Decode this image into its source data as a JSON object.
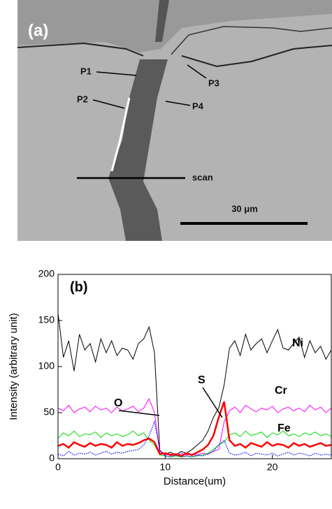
{
  "micrograph": {
    "panel_label": "(a)",
    "labels": [
      "P1",
      "P2",
      "P3",
      "P4"
    ],
    "scan_label": "scan",
    "scale_bar": "30 μm"
  },
  "chart_data": {
    "type": "line",
    "panel_label": "(b)",
    "x_label": "Distance(um)",
    "y_label": "Intensity (arbitrary unit)",
    "xlim": [
      0,
      25.5
    ],
    "ylim": [
      0,
      200
    ],
    "xticks": [
      0,
      10,
      20
    ],
    "yticks": [
      0,
      50,
      100,
      150,
      200
    ],
    "x": [
      0,
      0.5,
      1,
      1.5,
      2,
      2.5,
      3,
      3.5,
      4,
      4.5,
      5,
      5.5,
      6,
      6.5,
      7,
      7.5,
      8,
      8.5,
      9,
      9.5,
      10,
      10.5,
      11,
      11.5,
      12,
      12.5,
      13,
      13.5,
      14,
      14.5,
      15,
      15.5,
      16,
      16.5,
      17,
      17.5,
      18,
      18.5,
      19,
      19.5,
      20,
      20.5,
      21,
      21.5,
      22,
      22.5,
      23,
      23.5,
      24,
      24.5,
      25,
      25.5
    ],
    "series": [
      {
        "name": "Ni",
        "color": "#000000",
        "width": 1,
        "style": "solid",
        "values": [
          158,
          110,
          128,
          95,
          135,
          118,
          125,
          105,
          130,
          115,
          128,
          112,
          120,
          118,
          108,
          125,
          130,
          143,
          115,
          8,
          5,
          7,
          4,
          8,
          6,
          10,
          15,
          20,
          30,
          45,
          55,
          80,
          120,
          128,
          112,
          135,
          118,
          125,
          130,
          115,
          128,
          140,
          120,
          118,
          125,
          132,
          110,
          128,
          115,
          122,
          108,
          118
        ]
      },
      {
        "name": "Cr",
        "color": "#ff00ff",
        "width": 1,
        "style": "solid",
        "values": [
          55,
          52,
          58,
          50,
          54,
          56,
          51,
          57,
          53,
          55,
          50,
          56,
          52,
          54,
          57,
          51,
          55,
          65,
          50,
          6,
          4,
          5,
          3,
          6,
          4,
          5,
          4,
          6,
          5,
          8,
          10,
          40,
          52,
          56,
          50,
          58,
          54,
          51,
          55,
          53,
          57,
          50,
          54,
          56,
          52,
          55,
          51,
          58,
          53,
          56,
          50,
          55
        ]
      },
      {
        "name": "Fe",
        "color": "#00dd00",
        "width": 1,
        "style": "solid",
        "values": [
          22,
          28,
          25,
          30,
          24,
          27,
          26,
          29,
          23,
          28,
          25,
          27,
          24,
          26,
          30,
          25,
          28,
          20,
          15,
          4,
          3,
          2,
          3,
          2,
          3,
          2,
          3,
          4,
          6,
          10,
          15,
          18,
          26,
          28,
          24,
          30,
          25,
          27,
          29,
          23,
          28,
          26,
          30,
          25,
          27,
          24,
          28,
          26,
          29,
          25,
          27,
          24
        ]
      },
      {
        "name": "O",
        "color": "#0000ff",
        "width": 1.2,
        "style": "dotted",
        "values": [
          5,
          3,
          8,
          4,
          6,
          5,
          7,
          4,
          6,
          8,
          5,
          7,
          6,
          8,
          9,
          10,
          15,
          25,
          40,
          10,
          3,
          2,
          4,
          2,
          3,
          2,
          4,
          3,
          5,
          8,
          15,
          20,
          6,
          4,
          5,
          7,
          3,
          6,
          5,
          4,
          6,
          3,
          5,
          7,
          4,
          6,
          5,
          3,
          6,
          4,
          5,
          4
        ]
      },
      {
        "name": "S",
        "color": "#ff0000",
        "width": 2.5,
        "style": "solid",
        "values": [
          14,
          16,
          12,
          18,
          15,
          13,
          17,
          14,
          16,
          15,
          12,
          18,
          14,
          16,
          15,
          17,
          20,
          22,
          18,
          5,
          6,
          4,
          5,
          3,
          6,
          4,
          7,
          10,
          15,
          25,
          45,
          62,
          20,
          14,
          16,
          12,
          17,
          15,
          13,
          18,
          14,
          16,
          15,
          12,
          17,
          14,
          16,
          13,
          15,
          17,
          14,
          15
        ]
      }
    ]
  }
}
